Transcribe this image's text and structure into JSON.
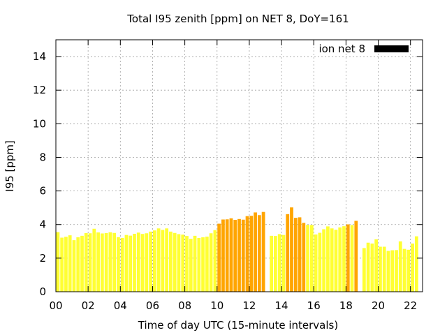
{
  "chart_data": {
    "type": "bar",
    "title": "Total I95 zenith [ppm] on NET 8, DoY=161",
    "xlabel": "Time of day UTC (15-minute intervals)",
    "ylabel": "I95 [ppm]",
    "xlim": [
      0,
      22.75
    ],
    "ylim": [
      0,
      15
    ],
    "x_ticks": [
      "00",
      "02",
      "04",
      "06",
      "08",
      "10",
      "12",
      "14",
      "16",
      "18",
      "20",
      "22"
    ],
    "y_ticks": [
      "0",
      "2",
      "4",
      "6",
      "8",
      "10",
      "12",
      "14"
    ],
    "grid": true,
    "legend": {
      "position": "top-right",
      "label": "ion net 8",
      "color": "#000000"
    },
    "bar_interval_hours": 0.25,
    "colors": {
      "low": "#ffff33",
      "mid": "#ffa500",
      "frame": "#000000",
      "grid": "#a0a0a0"
    },
    "series": [
      {
        "start_hour": 0,
        "values": [
          3.55,
          3.22,
          3.27,
          3.36,
          3.07,
          3.24,
          3.33,
          3.49,
          3.48,
          3.75,
          3.53,
          3.47,
          3.49,
          3.54,
          3.5,
          3.25,
          3.2,
          3.38,
          3.34,
          3.45,
          3.52,
          3.44,
          3.48,
          3.58,
          3.65,
          3.77,
          3.68,
          3.77,
          3.58,
          3.5,
          3.43,
          3.4,
          3.32,
          3.15,
          3.33,
          3.2,
          3.24,
          3.28,
          3.48,
          3.67,
          4.05,
          4.3,
          4.31,
          4.37,
          4.28,
          4.33,
          4.29,
          4.5,
          4.52,
          4.72,
          4.56,
          4.75,
          null,
          3.33,
          3.32,
          3.43,
          3.38,
          4.62,
          5.02,
          4.4,
          4.43,
          4.1,
          3.98,
          3.97,
          3.41,
          3.51,
          3.72,
          3.89,
          3.77,
          3.69,
          3.83,
          3.9,
          4.01,
          3.97,
          4.22,
          null,
          2.6,
          2.92,
          2.87,
          3.12,
          2.68,
          2.68,
          2.43,
          2.47,
          2.48,
          3.0,
          2.55,
          2.5,
          2.87,
          3.3
        ]
      }
    ]
  }
}
